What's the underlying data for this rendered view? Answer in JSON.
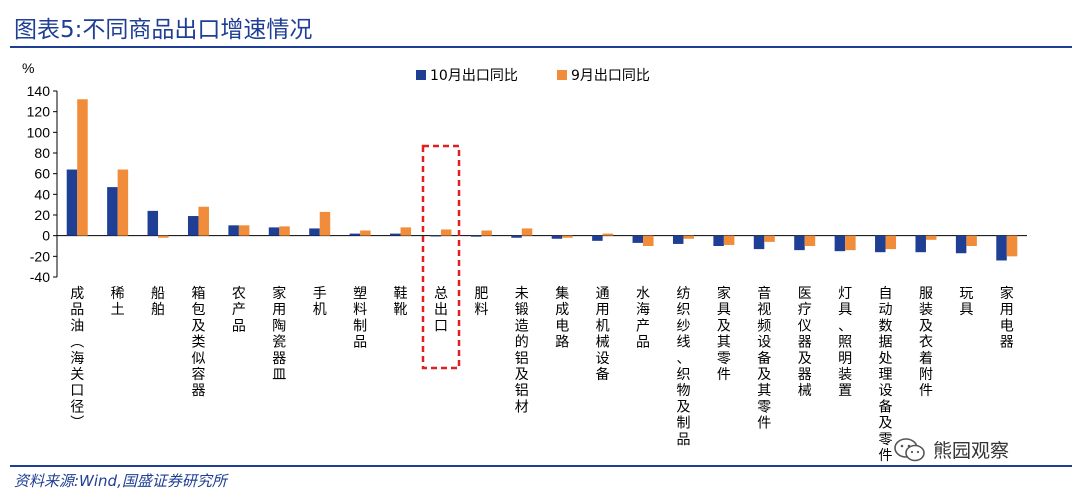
{
  "title": "图表5:不同商品出口增速情况",
  "source": "资料来源:Wind,国盛证券研究所",
  "watermark": "熊园观察",
  "chart_data": {
    "type": "bar",
    "ylabel": "%",
    "ylim": [
      -40,
      140
    ],
    "yticks": [
      -40,
      -20,
      0,
      20,
      40,
      60,
      80,
      100,
      120,
      140
    ],
    "categories": [
      "成品油(海关口径)",
      "稀土",
      "船舶",
      "箱包及类似容器",
      "农产品",
      "家用陶瓷器皿",
      "手机",
      "塑料制品",
      "鞋靴",
      "总出口",
      "肥料",
      "未锻造的铝及铝材",
      "集成电路",
      "通用机械设备",
      "水海产品",
      "纺织纱线、织物及制品",
      "家具及其零件",
      "音视频设备及其零件",
      "医疗仪器及器械",
      "灯具、照明装置",
      "自动数据处理设备及零件",
      "服装及衣着附件",
      "玩具",
      "家用电器"
    ],
    "series": [
      {
        "name": "10月出口同比",
        "color": "#1f3f94",
        "values": [
          64,
          47,
          24,
          19,
          10,
          8,
          7,
          2,
          2,
          0,
          -1,
          -2,
          -3,
          -5,
          -7,
          -8,
          -10,
          -13,
          -14,
          -15,
          -16,
          -16,
          -17,
          -24
        ]
      },
      {
        "name": "9月出口同比",
        "color": "#f08c3a",
        "values": [
          132,
          64,
          -2,
          28,
          10,
          9,
          23,
          5,
          8,
          6,
          5,
          7,
          -2,
          2,
          -10,
          -3,
          -9,
          -6,
          -10,
          -14,
          -13,
          -4,
          -10,
          -20
        ]
      }
    ],
    "legend_position": "top-center",
    "highlight_category": "总出口",
    "grid": false
  }
}
